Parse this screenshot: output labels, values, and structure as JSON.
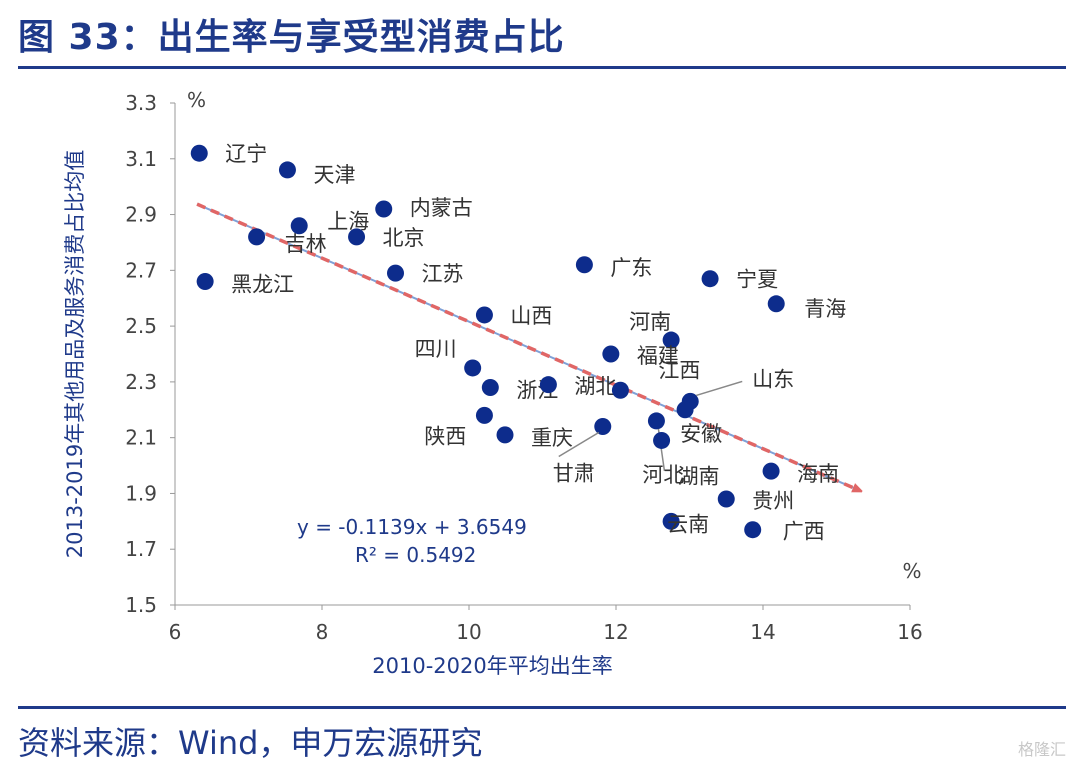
{
  "title": "图 33：出生率与享受型消费占比",
  "source": "资料来源：Wind，申万宏源研究",
  "watermark": "格隆汇",
  "colors": {
    "accent": "#1f3a8a",
    "point": "#0d2c8c",
    "trendline": "#e06666",
    "watermark": "#c8c8c8"
  },
  "chart_data": {
    "type": "scatter",
    "xlabel": "2010-2020年平均出生率",
    "ylabel": "2013-2019年其他用品及服务消费占比均值",
    "x_unit": "%",
    "y_unit": "%",
    "xlim": [
      6,
      16
    ],
    "ylim": [
      1.5,
      3.3
    ],
    "x_ticks": [
      6,
      8,
      10,
      12,
      14,
      16
    ],
    "y_ticks": [
      "1.5",
      "1.7",
      "1.9",
      "2.1",
      "2.3",
      "2.5",
      "2.7",
      "2.9",
      "3.1",
      "3.3"
    ],
    "grid": false,
    "trendline": {
      "equation": "y = -0.1139x + 3.6549",
      "r2": "R² = 0.5492",
      "slope": -0.1139,
      "intercept": 3.6549,
      "x_range": [
        6.3,
        15.3
      ]
    },
    "points": [
      {
        "name": "辽宁",
        "x": 6.33,
        "y": 3.12
      },
      {
        "name": "天津",
        "x": 7.53,
        "y": 3.06
      },
      {
        "name": "内蒙古",
        "x": 8.84,
        "y": 2.92
      },
      {
        "name": "上海",
        "x": 7.69,
        "y": 2.86
      },
      {
        "name": "吉林",
        "x": 7.11,
        "y": 2.82
      },
      {
        "name": "北京",
        "x": 8.47,
        "y": 2.82
      },
      {
        "name": "黑龙江",
        "x": 6.41,
        "y": 2.66
      },
      {
        "name": "江苏",
        "x": 9.0,
        "y": 2.69
      },
      {
        "name": "广东",
        "x": 11.57,
        "y": 2.72
      },
      {
        "name": "宁夏",
        "x": 13.28,
        "y": 2.67
      },
      {
        "name": "青海",
        "x": 14.18,
        "y": 2.58
      },
      {
        "name": "山西",
        "x": 10.21,
        "y": 2.54
      },
      {
        "name": "河南",
        "x": 12.75,
        "y": 2.45
      },
      {
        "name": "福建",
        "x": 11.93,
        "y": 2.4
      },
      {
        "name": "四川",
        "x": 10.05,
        "y": 2.35
      },
      {
        "name": "浙江",
        "x": 10.29,
        "y": 2.28
      },
      {
        "name": "湖北",
        "x": 11.08,
        "y": 2.29
      },
      {
        "name": "江西",
        "x": 12.06,
        "y": 2.27
      },
      {
        "name": "山东",
        "x": 13.01,
        "y": 2.23
      },
      {
        "name": "安徽",
        "x": 12.94,
        "y": 2.2
      },
      {
        "name": "陕西",
        "x": 10.21,
        "y": 2.18
      },
      {
        "name": "甘肃",
        "x": 11.82,
        "y": 2.14
      },
      {
        "name": "河北",
        "x": 12.55,
        "y": 2.16
      },
      {
        "name": "重庆",
        "x": 10.49,
        "y": 2.11
      },
      {
        "name": "湖南",
        "x": 12.62,
        "y": 2.09
      },
      {
        "name": "海南",
        "x": 14.11,
        "y": 1.98
      },
      {
        "name": "贵州",
        "x": 13.5,
        "y": 1.88
      },
      {
        "name": "云南",
        "x": 12.75,
        "y": 1.8
      },
      {
        "name": "广西",
        "x": 13.86,
        "y": 1.77
      }
    ]
  }
}
